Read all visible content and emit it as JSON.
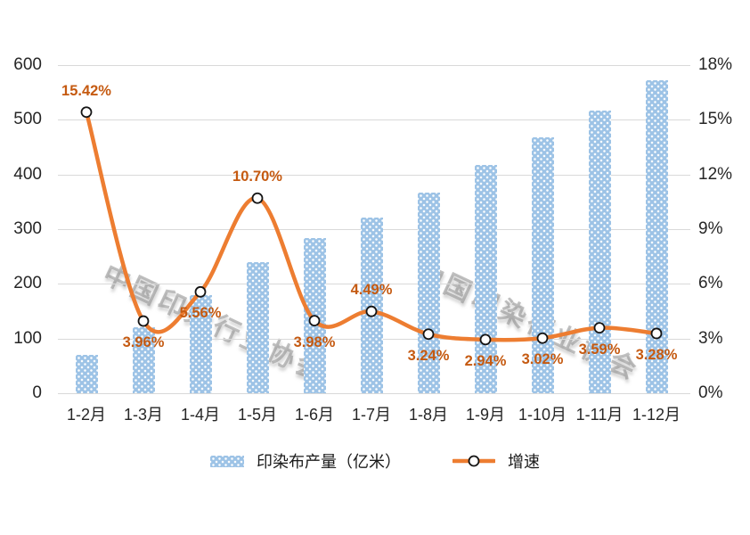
{
  "chart_data": {
    "type": "combo",
    "title": "",
    "categories": [
      "1-2月",
      "1-3月",
      "1-4月",
      "1-5月",
      "1-6月",
      "1-7月",
      "1-8月",
      "1-9月",
      "1-10月",
      "1-11月",
      "1-12月"
    ],
    "series": [
      {
        "name": "印染布产量（亿米）",
        "type": "bar",
        "axis": "left",
        "color": "#9DC3E6",
        "values": [
          70,
          121,
          179,
          239,
          283,
          321,
          367,
          417,
          468,
          517,
          573
        ]
      },
      {
        "name": "增速",
        "type": "line",
        "axis": "right",
        "color": "#ED7D31",
        "values": [
          15.42,
          3.96,
          5.56,
          10.7,
          3.98,
          4.49,
          3.24,
          2.94,
          3.02,
          3.59,
          3.28
        ],
        "data_labels": [
          "15.42%",
          "3.96%",
          "5.56%",
          "10.70%",
          "3.98%",
          "4.49%",
          "3.24%",
          "2.94%",
          "3.02%",
          "3.59%",
          "3.28%"
        ],
        "label_positions": [
          "above",
          "below",
          "below",
          "above",
          "below",
          "above",
          "below",
          "below",
          "below",
          "below",
          "below"
        ]
      }
    ],
    "left_axis": {
      "min": 0,
      "max": 600,
      "step": 100,
      "ticks": [
        "600",
        "500",
        "400",
        "300",
        "200",
        "100",
        "0"
      ]
    },
    "right_axis": {
      "min": 0,
      "max": 18,
      "step": 3,
      "ticks": [
        "18%",
        "15%",
        "12%",
        "9%",
        "6%",
        "3%",
        "0%"
      ]
    },
    "grid": true,
    "legend_position": "bottom",
    "line_smooth": true
  },
  "watermark": {
    "text": "中国印染行业协会"
  },
  "colors": {
    "bar": "#9DC3E6",
    "bar_dot": "#FFFFFF",
    "line": "#ED7D31",
    "data_label": "#C55A11",
    "axis_text": "#262626",
    "gridline": "#D9D9D9",
    "marker_fill": "#FFFFFF",
    "marker_stroke": "#141414",
    "background": "#FFFFFF"
  }
}
